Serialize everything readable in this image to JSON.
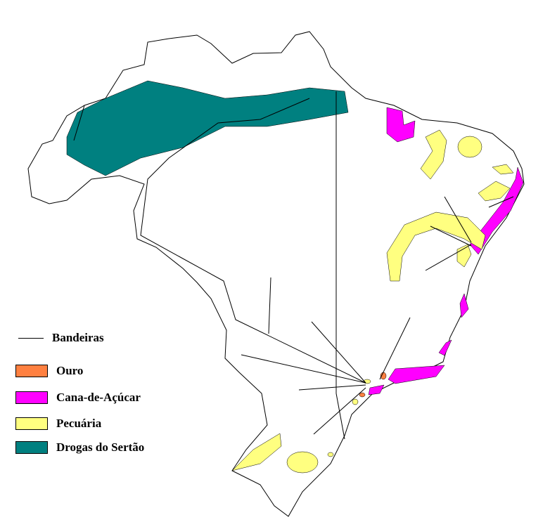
{
  "legend": {
    "items": [
      {
        "kind": "line",
        "label": "Bandeiras",
        "color": "#000000"
      },
      {
        "kind": "area",
        "label": "Ouro",
        "color": "#FF8040"
      },
      {
        "kind": "area",
        "label": "Cana-de-Açúcar",
        "color": "#FF00FF"
      },
      {
        "kind": "area",
        "label": "Pecuária",
        "color": "#FFFF80"
      },
      {
        "kind": "area",
        "label": "Drogas do Sertão",
        "color": "#008080"
      }
    ]
  }
}
